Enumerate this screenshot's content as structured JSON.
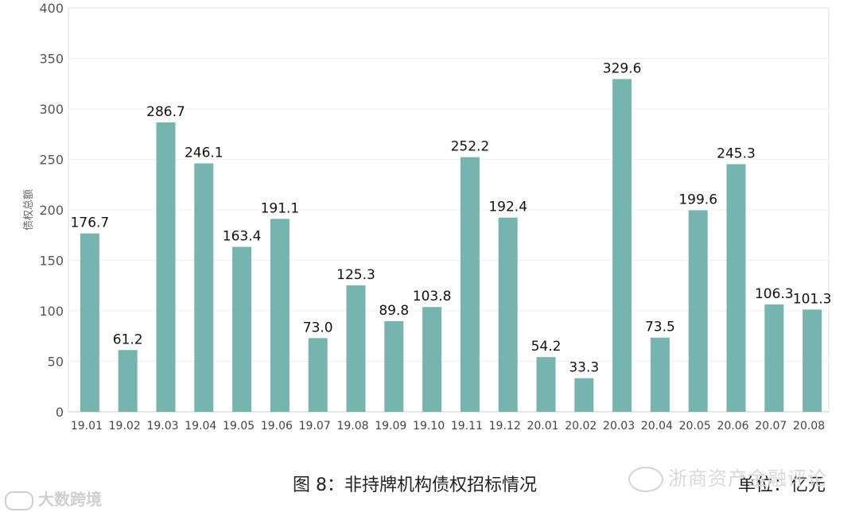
{
  "chart_data": {
    "type": "bar",
    "categories": [
      "19.01",
      "19.02",
      "19.03",
      "19.04",
      "19.05",
      "19.06",
      "19.07",
      "19.08",
      "19.09",
      "19.10",
      "19.11",
      "19.12",
      "20.01",
      "20.02",
      "20.03",
      "20.04",
      "20.05",
      "20.06",
      "20.07",
      "20.08"
    ],
    "values": [
      176.7,
      61.2,
      286.7,
      246.1,
      163.4,
      191.1,
      73.0,
      125.3,
      89.8,
      103.8,
      252.2,
      192.4,
      54.2,
      33.3,
      329.6,
      73.5,
      199.6,
      245.3,
      106.3,
      101.3
    ],
    "value_labels": [
      "176.7",
      "61.2",
      "286.7",
      "246.1",
      "163.4",
      "191.1",
      "73.0",
      "125.3",
      "89.8",
      "103.8",
      "252.2",
      "192.4",
      "54.2",
      "33.3",
      "329.6",
      "73.5",
      "199.6",
      "245.3",
      "106.3",
      "101.3"
    ],
    "ylabel": "债权总额",
    "ylim": [
      0,
      400
    ],
    "yticks": [
      0,
      50,
      100,
      150,
      200,
      250,
      300,
      350,
      400
    ],
    "ytick_labels": [
      "0",
      "50",
      "100",
      "150",
      "200",
      "250",
      "300",
      "350",
      "400"
    ],
    "grid": true,
    "bar_color": "#76b5af"
  },
  "caption": "图 8：非持牌机构债权招标情况",
  "unit_label": "单位：亿元",
  "watermark_right": "浙商资产金融评论",
  "watermark_left": "大数跨境"
}
